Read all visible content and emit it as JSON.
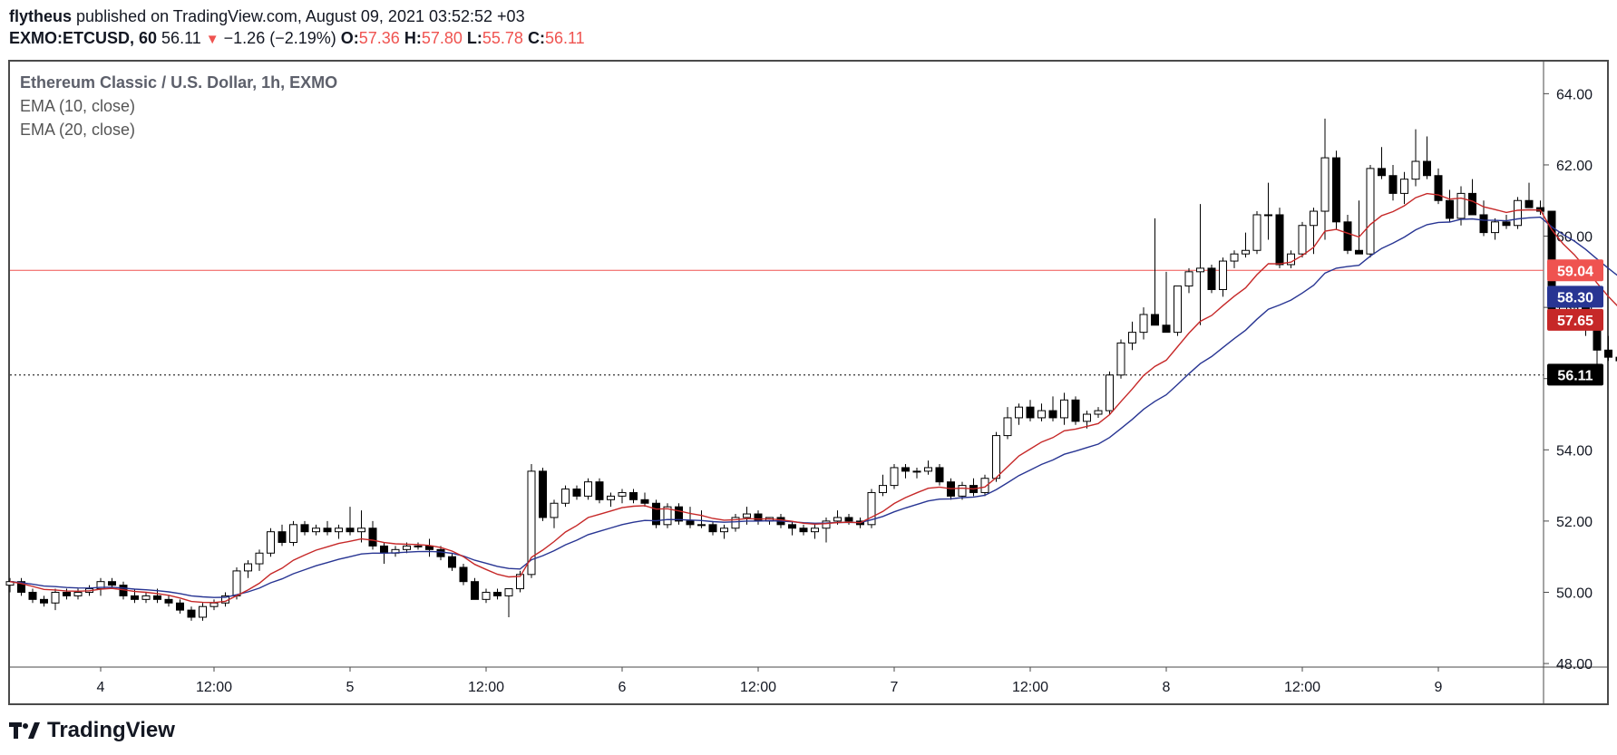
{
  "header": {
    "author": "flytheus",
    "published": "published on TradingView.com, August 09, 2021 03:52:52 +03",
    "symbol": "EXMO:ETCUSD, 60",
    "last": "56.11",
    "change": "−1.26 (−2.19%)",
    "o_label": "O:",
    "o": "57.36",
    "h_label": "H:",
    "h": "57.80",
    "l_label": "L:",
    "l": "55.78",
    "c_label": "C:",
    "c": "56.11"
  },
  "legend": {
    "title": "Ethereum Classic / U.S. Dollar, 1h, EXMO",
    "ema10": "EMA (10, close)",
    "ema20": "EMA (20, close)"
  },
  "footer": {
    "brand": "TradingView",
    "logo_icon": "tradingview-logo-icon"
  },
  "colors": {
    "up_body": "#ffffff",
    "down_body": "#000000",
    "wick": "#000000",
    "ema10": "#c62828",
    "ema20": "#283593",
    "hline": "#ef5350",
    "last_bg": "#000000"
  },
  "chart_data": {
    "type": "candlestick",
    "y_range": [
      47.9,
      64.9
    ],
    "y_ticks": [
      "64.00",
      "62.00",
      "60.00",
      "58.00",
      "56.00",
      "54.00",
      "52.00",
      "50.00",
      "48.00"
    ],
    "y_tick_values": [
      64,
      62,
      60,
      58,
      56,
      54,
      52,
      50,
      48
    ],
    "x_ticks": [
      "4",
      "12:00",
      "5",
      "12:00",
      "6",
      "12:00",
      "7",
      "12:00",
      "8",
      "12:00",
      "9"
    ],
    "x_tick_bars": [
      8,
      18,
      30,
      42,
      54,
      66,
      78,
      90,
      102,
      114,
      126
    ],
    "horizontal_line": {
      "value": 59.04,
      "label": "59.04"
    },
    "labels": [
      {
        "value": 58.3,
        "text": "58.30",
        "color": "#283593"
      },
      {
        "value": 57.65,
        "text": "57.65",
        "color": "#c62828"
      },
      {
        "value": 56.11,
        "text": "56.11",
        "color": "#000000"
      }
    ],
    "ohlc": [
      [
        50.2,
        50.4,
        50.0,
        50.3
      ],
      [
        50.3,
        50.4,
        49.9,
        50.0
      ],
      [
        50.0,
        50.1,
        49.7,
        49.8
      ],
      [
        49.8,
        49.9,
        49.6,
        49.7
      ],
      [
        49.7,
        50.1,
        49.5,
        50.0
      ],
      [
        50.0,
        50.1,
        49.8,
        49.9
      ],
      [
        49.9,
        50.1,
        49.8,
        50.0
      ],
      [
        50.0,
        50.2,
        49.9,
        50.1
      ],
      [
        50.1,
        50.4,
        49.9,
        50.3
      ],
      [
        50.3,
        50.4,
        50.1,
        50.2
      ],
      [
        50.2,
        50.3,
        49.8,
        49.9
      ],
      [
        49.9,
        50.1,
        49.7,
        49.8
      ],
      [
        49.8,
        50.0,
        49.7,
        49.9
      ],
      [
        49.9,
        50.1,
        49.7,
        49.8
      ],
      [
        49.8,
        49.9,
        49.6,
        49.7
      ],
      [
        49.7,
        49.8,
        49.4,
        49.5
      ],
      [
        49.5,
        49.6,
        49.2,
        49.3
      ],
      [
        49.3,
        49.7,
        49.2,
        49.6
      ],
      [
        49.6,
        49.8,
        49.5,
        49.7
      ],
      [
        49.7,
        50.0,
        49.6,
        49.9
      ],
      [
        49.9,
        50.7,
        49.8,
        50.6
      ],
      [
        50.6,
        50.9,
        50.4,
        50.8
      ],
      [
        50.8,
        51.2,
        50.6,
        51.1
      ],
      [
        51.1,
        51.8,
        51.0,
        51.7
      ],
      [
        51.7,
        51.9,
        51.3,
        51.4
      ],
      [
        51.4,
        52.0,
        51.3,
        51.9
      ],
      [
        51.9,
        52.0,
        51.6,
        51.7
      ],
      [
        51.7,
        51.9,
        51.6,
        51.8
      ],
      [
        51.8,
        52.0,
        51.6,
        51.7
      ],
      [
        51.7,
        51.9,
        51.5,
        51.8
      ],
      [
        51.8,
        52.4,
        51.6,
        51.7
      ],
      [
        51.7,
        52.3,
        51.4,
        51.8
      ],
      [
        51.8,
        52.0,
        51.2,
        51.3
      ],
      [
        51.3,
        51.4,
        50.8,
        51.1
      ],
      [
        51.1,
        51.3,
        51.0,
        51.2
      ],
      [
        51.2,
        51.4,
        51.1,
        51.3
      ],
      [
        51.3,
        51.4,
        51.2,
        51.3
      ],
      [
        51.3,
        51.5,
        51.0,
        51.2
      ],
      [
        51.2,
        51.3,
        50.9,
        51.0
      ],
      [
        51.0,
        51.1,
        50.6,
        50.7
      ],
      [
        50.7,
        50.8,
        50.2,
        50.3
      ],
      [
        50.3,
        50.4,
        49.8,
        49.8
      ],
      [
        49.8,
        50.1,
        49.7,
        50.0
      ],
      [
        50.0,
        50.1,
        49.8,
        49.9
      ],
      [
        49.9,
        50.1,
        49.3,
        50.1
      ],
      [
        50.1,
        50.6,
        50.0,
        50.5
      ],
      [
        50.5,
        53.6,
        50.4,
        53.4
      ],
      [
        53.4,
        53.5,
        52.0,
        52.1
      ],
      [
        52.1,
        52.6,
        51.8,
        52.5
      ],
      [
        52.5,
        53.0,
        52.4,
        52.9
      ],
      [
        52.9,
        53.0,
        52.6,
        52.7
      ],
      [
        52.7,
        53.2,
        52.6,
        53.1
      ],
      [
        53.1,
        53.2,
        52.5,
        52.6
      ],
      [
        52.6,
        52.8,
        52.4,
        52.7
      ],
      [
        52.7,
        52.9,
        52.5,
        52.8
      ],
      [
        52.8,
        52.9,
        52.5,
        52.6
      ],
      [
        52.6,
        52.8,
        52.4,
        52.5
      ],
      [
        52.5,
        52.6,
        51.8,
        51.9
      ],
      [
        51.9,
        52.5,
        51.8,
        52.4
      ],
      [
        52.4,
        52.5,
        51.9,
        52.0
      ],
      [
        52.0,
        52.4,
        51.8,
        51.9
      ],
      [
        51.9,
        52.3,
        51.8,
        51.9
      ],
      [
        51.9,
        52.0,
        51.6,
        51.7
      ],
      [
        51.7,
        51.9,
        51.5,
        51.8
      ],
      [
        51.8,
        52.2,
        51.7,
        52.1
      ],
      [
        52.1,
        52.4,
        51.9,
        52.2
      ],
      [
        52.2,
        52.3,
        51.9,
        52.0
      ],
      [
        52.0,
        52.1,
        51.9,
        52.1
      ],
      [
        52.1,
        52.2,
        51.8,
        51.9
      ],
      [
        51.9,
        52.0,
        51.6,
        51.8
      ],
      [
        51.8,
        51.9,
        51.6,
        51.7
      ],
      [
        51.7,
        51.9,
        51.5,
        51.8
      ],
      [
        51.8,
        52.1,
        51.4,
        52.0
      ],
      [
        52.0,
        52.3,
        51.9,
        52.1
      ],
      [
        52.1,
        52.2,
        51.9,
        52.0
      ],
      [
        52.0,
        52.1,
        51.8,
        51.9
      ],
      [
        51.9,
        52.9,
        51.8,
        52.8
      ],
      [
        52.8,
        53.3,
        52.7,
        53.0
      ],
      [
        53.0,
        53.6,
        52.9,
        53.5
      ],
      [
        53.5,
        53.6,
        53.2,
        53.4
      ],
      [
        53.4,
        53.5,
        53.2,
        53.4
      ],
      [
        53.4,
        53.7,
        53.3,
        53.5
      ],
      [
        53.5,
        53.6,
        53.0,
        53.1
      ],
      [
        53.1,
        53.2,
        52.6,
        52.7
      ],
      [
        52.7,
        53.1,
        52.6,
        53.0
      ],
      [
        53.0,
        53.2,
        52.7,
        52.8
      ],
      [
        52.8,
        53.3,
        52.7,
        53.2
      ],
      [
        53.2,
        54.5,
        53.1,
        54.4
      ],
      [
        54.4,
        55.2,
        54.3,
        54.9
      ],
      [
        54.9,
        55.3,
        54.7,
        55.2
      ],
      [
        55.2,
        55.4,
        54.8,
        54.9
      ],
      [
        54.9,
        55.3,
        54.8,
        55.1
      ],
      [
        55.1,
        55.5,
        54.8,
        54.9
      ],
      [
        54.9,
        55.6,
        54.7,
        55.4
      ],
      [
        55.4,
        55.5,
        54.7,
        54.8
      ],
      [
        54.8,
        55.1,
        54.6,
        55.0
      ],
      [
        55.0,
        55.2,
        54.9,
        55.1
      ],
      [
        55.1,
        56.2,
        55.0,
        56.1
      ],
      [
        56.1,
        57.1,
        56.0,
        57.0
      ],
      [
        57.0,
        57.6,
        56.8,
        57.3
      ],
      [
        57.3,
        58.0,
        57.1,
        57.8
      ],
      [
        57.8,
        60.5,
        57.6,
        57.5
      ],
      [
        57.5,
        59.0,
        57.3,
        57.3
      ],
      [
        57.3,
        58.6,
        57.2,
        58.6
      ],
      [
        58.6,
        59.1,
        58.4,
        59.0
      ],
      [
        59.0,
        60.9,
        57.5,
        59.1
      ],
      [
        59.1,
        59.2,
        58.4,
        58.5
      ],
      [
        58.5,
        59.4,
        58.3,
        59.3
      ],
      [
        59.3,
        59.6,
        59.1,
        59.5
      ],
      [
        59.5,
        60.1,
        59.4,
        59.6
      ],
      [
        59.6,
        60.7,
        59.5,
        60.6
      ],
      [
        60.6,
        61.5,
        59.9,
        60.6
      ],
      [
        60.6,
        60.8,
        59.1,
        59.2
      ],
      [
        59.2,
        59.6,
        59.1,
        59.5
      ],
      [
        59.5,
        60.4,
        59.4,
        60.3
      ],
      [
        60.3,
        60.8,
        59.5,
        60.7
      ],
      [
        60.7,
        63.3,
        59.9,
        62.2
      ],
      [
        62.2,
        62.4,
        60.2,
        60.4
      ],
      [
        60.4,
        60.6,
        59.5,
        59.6
      ],
      [
        59.6,
        61.0,
        59.5,
        59.5
      ],
      [
        59.5,
        62.0,
        59.4,
        61.9
      ],
      [
        61.9,
        62.5,
        61.6,
        61.7
      ],
      [
        61.7,
        62.0,
        61.0,
        61.2
      ],
      [
        61.2,
        61.8,
        60.9,
        61.6
      ],
      [
        61.6,
        63.0,
        61.4,
        62.1
      ],
      [
        62.1,
        62.8,
        61.6,
        61.7
      ],
      [
        61.7,
        61.9,
        60.9,
        61.0
      ],
      [
        61.0,
        61.3,
        60.4,
        60.5
      ],
      [
        60.5,
        61.4,
        60.3,
        61.2
      ],
      [
        61.2,
        61.6,
        60.6,
        60.6
      ],
      [
        60.6,
        61.0,
        60.0,
        60.1
      ],
      [
        60.1,
        60.5,
        59.9,
        60.4
      ],
      [
        60.4,
        60.6,
        60.2,
        60.3
      ],
      [
        60.3,
        61.1,
        60.2,
        61.0
      ],
      [
        61.0,
        61.5,
        60.8,
        60.8
      ],
      [
        60.8,
        61.0,
        60.6,
        60.7
      ],
      [
        60.7,
        60.7,
        57.6,
        57.7
      ],
      [
        57.7,
        58.2,
        57.4,
        58.0
      ],
      [
        58.0,
        58.6,
        57.9,
        58.1
      ],
      [
        58.1,
        58.2,
        57.2,
        57.4
      ],
      [
        57.4,
        57.5,
        56.1,
        56.8
      ],
      [
        56.8,
        57.2,
        56.5,
        56.6
      ],
      [
        56.6,
        57.3,
        56.2,
        56.5
      ],
      [
        56.5,
        56.7,
        56.0,
        56.6
      ],
      [
        56.6,
        57.1,
        56.4,
        56.9
      ],
      [
        56.9,
        57.3,
        56.6,
        57.0
      ],
      [
        57.0,
        57.7,
        56.9,
        57.6
      ],
      [
        57.6,
        58.2,
        57.5,
        57.8
      ],
      [
        57.8,
        58.1,
        57.2,
        57.2
      ],
      [
        57.4,
        57.8,
        55.8,
        56.1
      ]
    ]
  }
}
